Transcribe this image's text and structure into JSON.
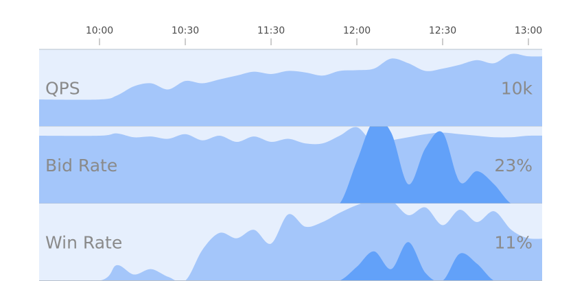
{
  "colors": {
    "panel_bg": "#e6effd",
    "band_light": "#a4c6fa",
    "band_dark": "#62a1f9",
    "gap": "#ffffff",
    "divider": "#b7c0cc",
    "tick": "#9a9a9a",
    "text": "#8a8a8a"
  },
  "chart_data": {
    "type": "area",
    "x_ticks": [
      "10:00",
      "10:30",
      "11:30",
      "12:00",
      "12:30",
      "13:00"
    ],
    "x": [
      0,
      0.2,
      0.4,
      0.6,
      0.8,
      1.0,
      1.2,
      1.4,
      1.6,
      1.8,
      2.0,
      2.2,
      2.4,
      2.6,
      2.8,
      3.0,
      3.2,
      3.4,
      3.6,
      3.8,
      4.0,
      4.2,
      4.4,
      4.6,
      4.8,
      5.0
    ],
    "rows": [
      {
        "label": "QPS",
        "value": "10k",
        "series": [
          {
            "shade": "light",
            "values": [
              0.35,
              0.4,
              0.52,
              0.56,
              0.48,
              0.59,
              0.56,
              0.61,
              0.66,
              0.71,
              0.68,
              0.72,
              0.7,
              0.66,
              0.72,
              0.73,
              0.75,
              0.88,
              0.82,
              0.72,
              0.75,
              0.8,
              0.86,
              0.82,
              0.94,
              0.91
            ]
          }
        ]
      },
      {
        "label": "Bid Rate",
        "value": "23%",
        "series": [
          {
            "shade": "light",
            "values": [
              0.88,
              0.91,
              0.86,
              0.87,
              0.84,
              0.9,
              0.82,
              0.88,
              0.8,
              0.87,
              0.8,
              0.84,
              0.78,
              0.78,
              0.88,
              0.99,
              0.78,
              0.82,
              0.86,
              0.9,
              0.92,
              0.9,
              0.88,
              0.86,
              0.86,
              0.88
            ]
          },
          {
            "shade": "dark",
            "values": [
              0,
              0,
              0,
              0,
              0,
              0,
              0,
              0,
              0,
              0,
              0,
              0,
              0,
              0,
              0,
              0.55,
              1.08,
              0.92,
              0.25,
              0.72,
              0.92,
              0.28,
              0.42,
              0.25,
              0,
              0
            ]
          }
        ]
      },
      {
        "label": "Win Rate",
        "value": "11%",
        "series": [
          {
            "shade": "light",
            "values": [
              0,
              0.2,
              0.08,
              0.15,
              0.05,
              0,
              0.4,
              0.62,
              0.55,
              0.66,
              0.48,
              0.86,
              0.7,
              0.76,
              0.88,
              0.98,
              1.05,
              1.04,
              0.85,
              0.95,
              0.72,
              0.92,
              0.76,
              0.9,
              0.66,
              0.55
            ]
          },
          {
            "shade": "dark",
            "values": [
              0,
              0,
              0,
              0,
              0,
              0,
              0,
              0,
              0,
              0,
              0,
              0,
              0,
              0,
              0,
              0.18,
              0.38,
              0.15,
              0.5,
              0.1,
              0,
              0.35,
              0.22,
              0,
              0,
              0
            ]
          }
        ]
      }
    ]
  }
}
